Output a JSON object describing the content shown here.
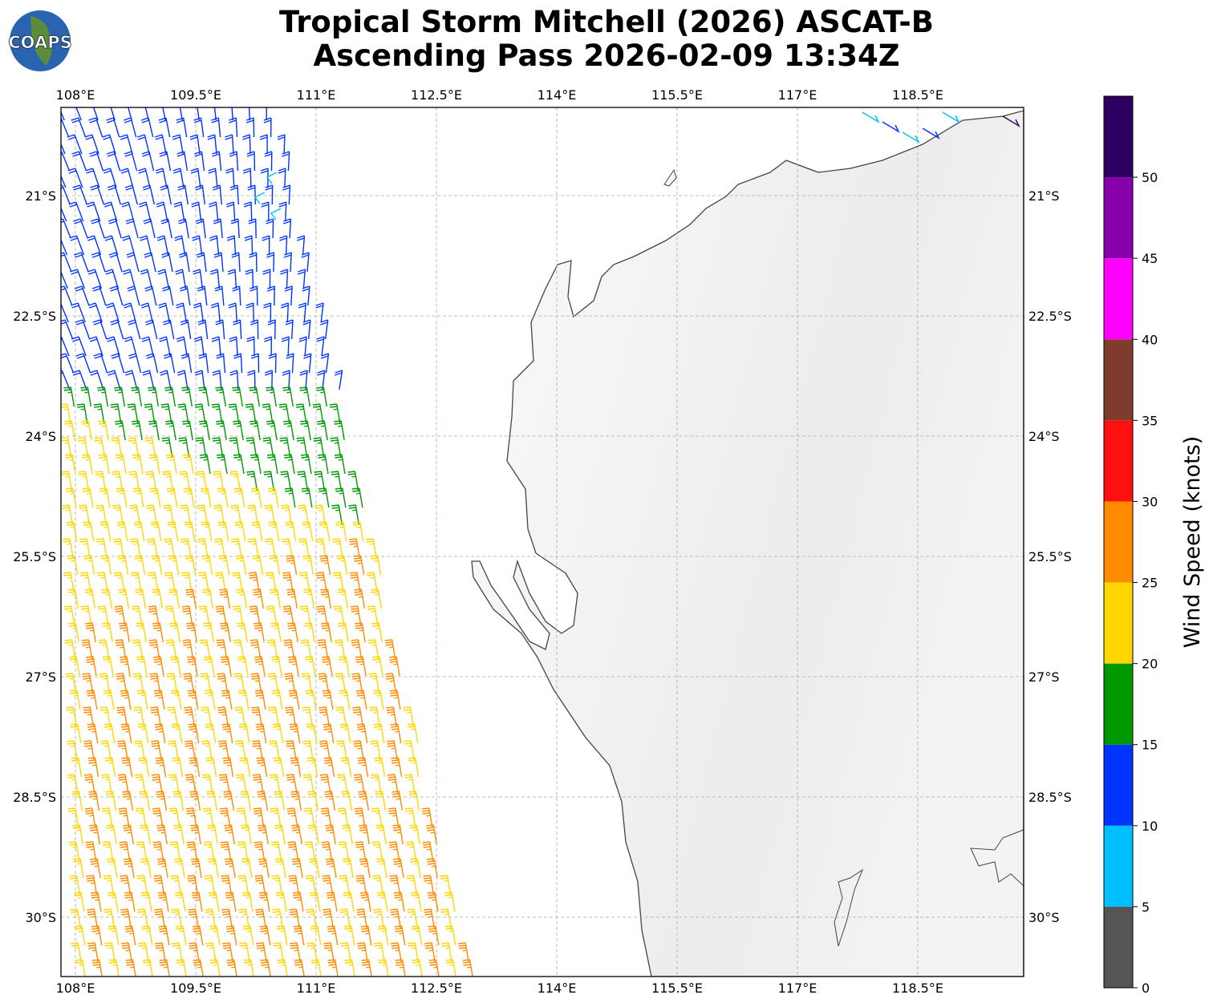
{
  "header": {
    "title_line1": "Tropical Storm Mitchell (2026) ASCAT-B",
    "title_line2": "Ascending Pass 2026-02-09 13:34Z",
    "logo": "COAPS"
  },
  "map": {
    "xlim": [
      107.82,
      119.82
    ],
    "ylim": [
      -19.9,
      -30.74
    ],
    "xticks": [
      {
        "value": 108,
        "label": "108°E"
      },
      {
        "value": 109.5,
        "label": "109.5°E"
      },
      {
        "value": 111,
        "label": "111°E"
      },
      {
        "value": 112.5,
        "label": "112.5°E"
      },
      {
        "value": 114,
        "label": "114°E"
      },
      {
        "value": 115.5,
        "label": "115.5°E"
      },
      {
        "value": 117,
        "label": "117°E"
      },
      {
        "value": 118.5,
        "label": "118.5°E"
      }
    ],
    "yticks": [
      {
        "value": -21,
        "label": "21°S"
      },
      {
        "value": -22.5,
        "label": "22.5°S"
      },
      {
        "value": -24,
        "label": "24°S"
      },
      {
        "value": -25.5,
        "label": "25.5°S"
      },
      {
        "value": -27,
        "label": "27°S"
      },
      {
        "value": -28.5,
        "label": "28.5°S"
      },
      {
        "value": -30,
        "label": "30°S"
      }
    ],
    "grid": true
  },
  "colorbar": {
    "label": "Wind Speed (knots)",
    "lim": [
      0,
      55
    ],
    "ticks": [
      0,
      5,
      10,
      15,
      20,
      25,
      30,
      35,
      40,
      45,
      50
    ],
    "colors": [
      "#555555",
      "#00bfff",
      "#0033ff",
      "#009900",
      "#ffd700",
      "#ff8c00",
      "#ff1010",
      "#7f3b2b",
      "#ff00ff",
      "#8800aa",
      "#2b0060"
    ]
  }
}
